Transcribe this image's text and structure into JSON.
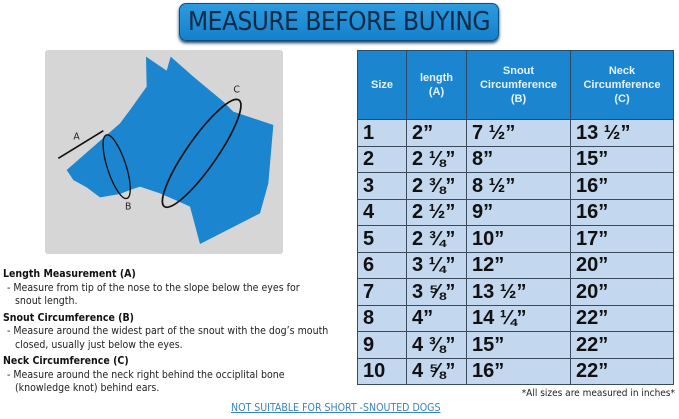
{
  "title": "MEASURE BEFORE BUYING",
  "diagram": {
    "labels": {
      "a": "A",
      "b": "B",
      "c": "C"
    },
    "colors": {
      "dog": "#1b86cf",
      "panel": "#d6d6d6"
    }
  },
  "table": {
    "headers": [
      [
        "Size"
      ],
      [
        "length",
        "(A)"
      ],
      [
        "Snout",
        "Circumference",
        "(B)"
      ],
      [
        "Neck",
        "Circumference",
        "(C)"
      ]
    ],
    "rows": [
      [
        "1",
        "2”",
        "7 ½”",
        "13 ½”"
      ],
      [
        "2",
        "2 ⅛”",
        "8”",
        "15”"
      ],
      [
        "3",
        "2 ⅜”",
        "8 ½”",
        "16”"
      ],
      [
        "4",
        "2 ½”",
        "9”",
        "16”"
      ],
      [
        "5",
        "2 ¾”",
        "10”",
        "17”"
      ],
      [
        "6",
        "3 ¼”",
        "12”",
        "20”"
      ],
      [
        "7",
        "3 ⅝”",
        "13 ½”",
        "20”"
      ],
      [
        "8",
        "4”",
        "14 ¼”",
        "22”"
      ],
      [
        "9",
        "4 ⅜”",
        "15”",
        "22”"
      ],
      [
        "10",
        "4 ⅝”",
        "16”",
        "22”"
      ]
    ]
  },
  "instructions": [
    {
      "heading": "Length Measurement (A)",
      "lines": [
        "- Measure from tip of the nose to the slope below the eyes for",
        "snout length."
      ]
    },
    {
      "heading": "Snout Circumference (B)",
      "lines": [
        "- Measure around the widest part of the snout with the dog’s mouth",
        "closed, usually just below the eyes."
      ]
    },
    {
      "heading": "Neck Circumference (C)",
      "lines": [
        "- Measure around the neck right behind the occiplital bone",
        "(knowledge knot) behind ears."
      ]
    }
  ],
  "footnote": "*All sizes are measured in inches*",
  "warning_link": "NOT SUITABLE FOR SHORT -SNOUTED DOGS"
}
